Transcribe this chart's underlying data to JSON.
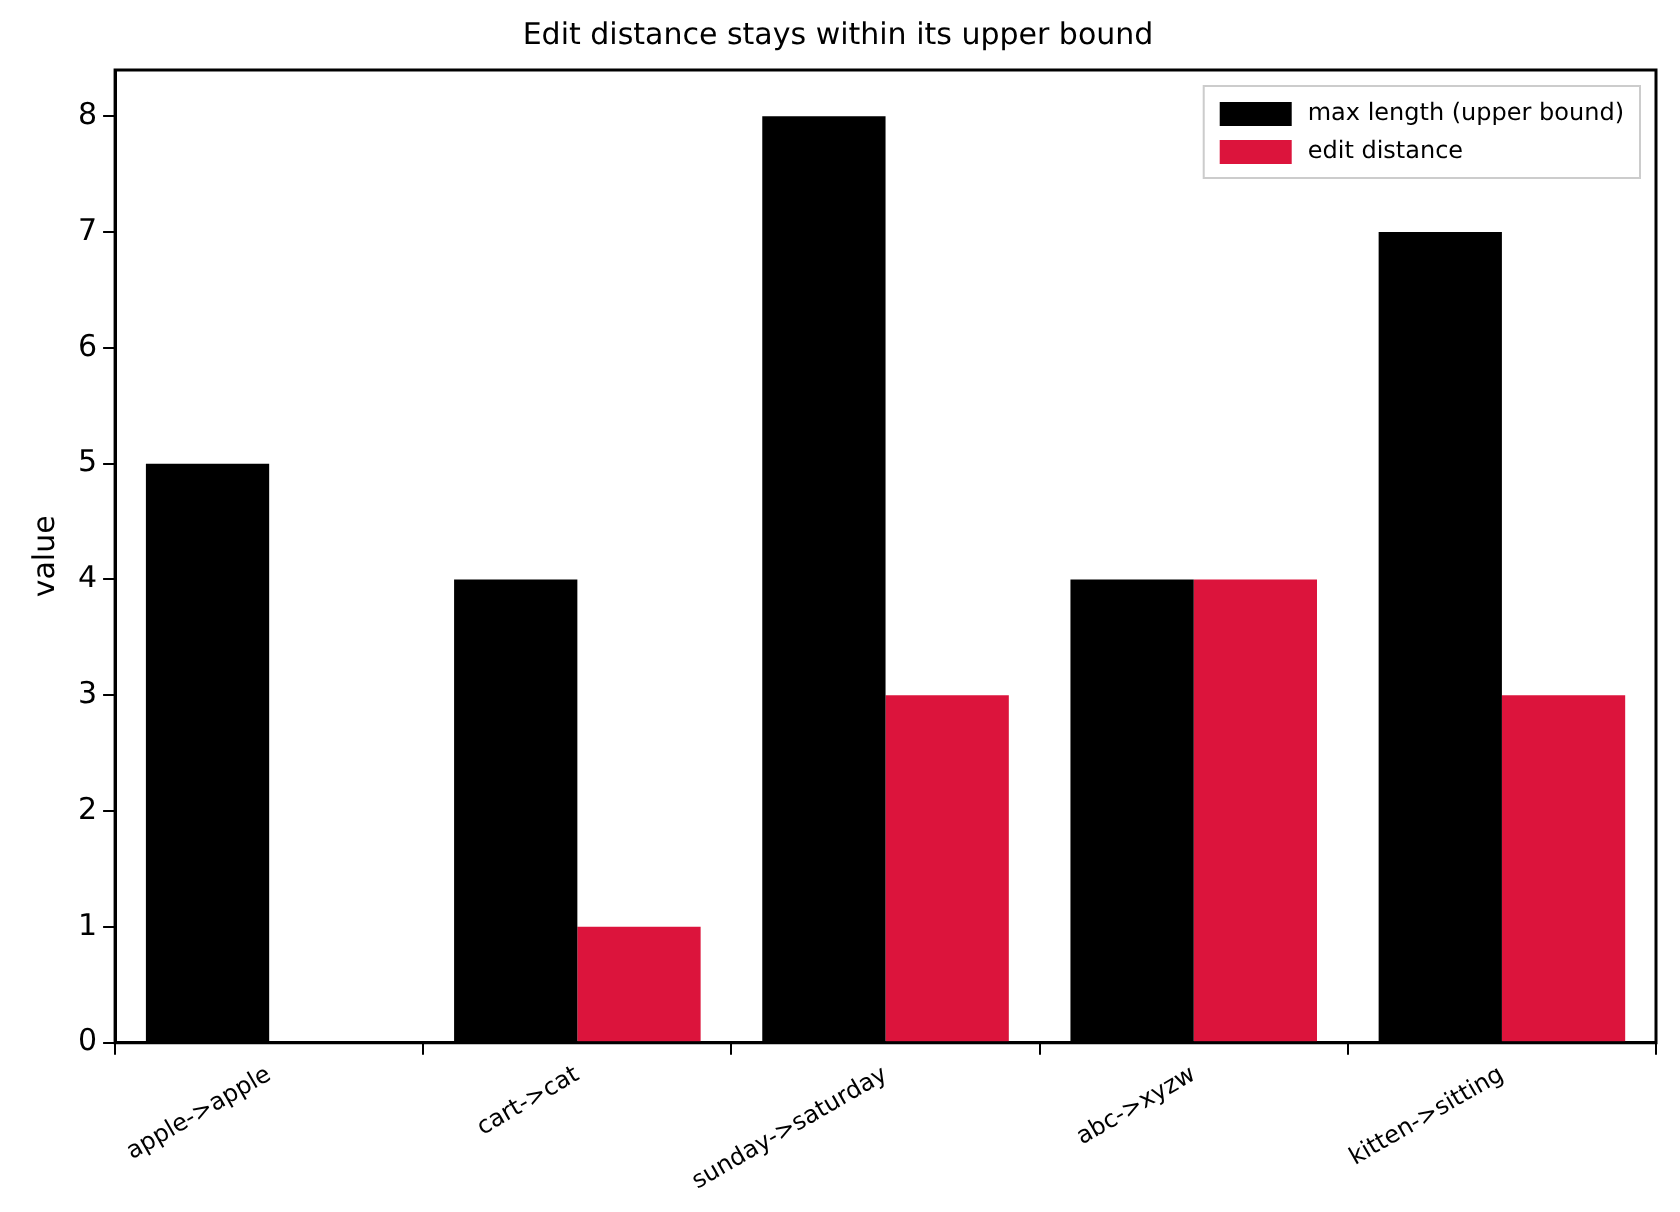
{
  "chart_data": {
    "type": "bar",
    "title": "Edit distance stays within its upper bound",
    "ylabel": "value",
    "categories": [
      "apple->apple",
      "cart->cat",
      "sunday->saturday",
      "abc->xyzw",
      "kitten->sitting"
    ],
    "series": [
      {
        "name": "max length (upper bound)",
        "color": "#000000",
        "values": [
          5,
          4,
          8,
          4,
          7
        ]
      },
      {
        "name": "edit distance",
        "color": "#dc143c",
        "values": [
          0,
          1,
          3,
          4,
          3
        ]
      }
    ],
    "ylim": [
      0,
      8.4
    ],
    "yticks": [
      0,
      1,
      2,
      3,
      4,
      5,
      6,
      7,
      8
    ],
    "grid": false,
    "legend": "top right"
  }
}
